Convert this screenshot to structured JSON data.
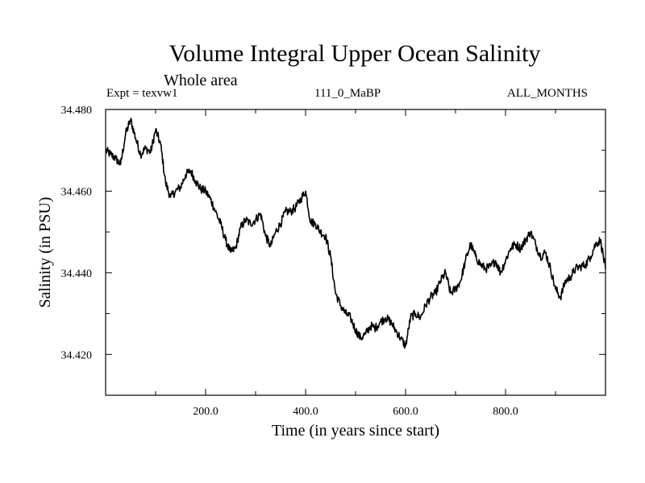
{
  "chart_data": {
    "type": "line",
    "title": "Volume Integral Upper Ocean Salinity",
    "subtitle": "Whole area",
    "experiment": "Expt = texvw1",
    "run_id": "111_0_MaBP",
    "months": "ALL_MONTHS",
    "xlabel": "Time (in years since start)",
    "ylabel": "Salinity (in PSU)",
    "xlim": [
      0,
      1000
    ],
    "ylim": [
      34.41,
      34.48
    ],
    "x_ticks": [
      200,
      400,
      600,
      800
    ],
    "x_tick_labels": [
      "200.0",
      "400.0",
      "600.0",
      "800.0"
    ],
    "y_ticks": [
      34.42,
      34.44,
      34.46,
      34.48
    ],
    "y_tick_labels": [
      "34.420",
      "34.440",
      "34.460",
      "34.480"
    ],
    "series": [
      {
        "name": "Salinity",
        "x": [
          0,
          10,
          20,
          30,
          40,
          50,
          60,
          70,
          80,
          90,
          100,
          110,
          120,
          130,
          140,
          150,
          160,
          170,
          180,
          190,
          200,
          210,
          220,
          230,
          240,
          250,
          260,
          270,
          280,
          290,
          300,
          310,
          320,
          330,
          340,
          350,
          360,
          370,
          380,
          390,
          400,
          410,
          420,
          430,
          440,
          450,
          460,
          470,
          480,
          490,
          500,
          510,
          520,
          530,
          540,
          550,
          560,
          570,
          580,
          590,
          600,
          610,
          620,
          630,
          640,
          650,
          660,
          670,
          680,
          690,
          700,
          710,
          720,
          730,
          740,
          750,
          760,
          770,
          780,
          790,
          800,
          810,
          820,
          830,
          840,
          850,
          860,
          870,
          880,
          890,
          900,
          910,
          920,
          930,
          940,
          950,
          960,
          970,
          980,
          990,
          1000
        ],
        "values": [
          34.47,
          34.469,
          34.468,
          34.4665,
          34.474,
          34.4775,
          34.473,
          34.469,
          34.4705,
          34.4695,
          34.475,
          34.4715,
          34.462,
          34.4585,
          34.46,
          34.461,
          34.464,
          34.465,
          34.4625,
          34.4605,
          34.46,
          34.458,
          34.455,
          34.452,
          34.448,
          34.445,
          34.446,
          34.451,
          34.453,
          34.452,
          34.453,
          34.4545,
          34.449,
          34.4465,
          34.45,
          34.452,
          34.455,
          34.455,
          34.456,
          34.458,
          34.46,
          34.4525,
          34.452,
          34.45,
          34.449,
          34.444,
          34.435,
          34.432,
          34.43,
          34.429,
          34.426,
          34.424,
          34.425,
          34.427,
          34.4265,
          34.428,
          34.429,
          34.428,
          34.426,
          34.424,
          34.422,
          34.429,
          34.43,
          34.429,
          34.432,
          34.434,
          34.435,
          34.438,
          34.44,
          34.435,
          34.436,
          34.438,
          34.443,
          34.447,
          34.444,
          34.442,
          34.441,
          34.4415,
          34.443,
          34.44,
          34.443,
          34.446,
          34.447,
          34.446,
          34.448,
          34.45,
          34.447,
          34.444,
          34.445,
          34.441,
          34.436,
          34.434,
          34.438,
          34.439,
          34.441,
          34.4415,
          34.442,
          34.444,
          34.447,
          34.448,
          34.441
        ]
      }
    ]
  }
}
